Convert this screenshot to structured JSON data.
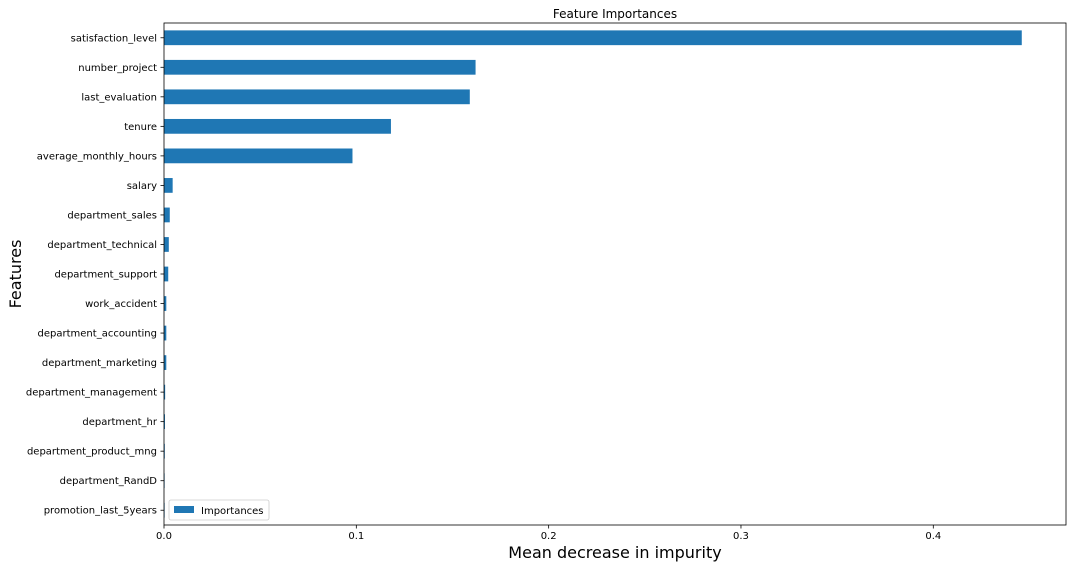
{
  "chart_data": {
    "type": "bar",
    "orientation": "horizontal",
    "title": "Feature Importances",
    "xlabel": "Mean decrease in impurity",
    "ylabel": "Features",
    "xlim": [
      0,
      0.469
    ],
    "xticks": [
      0.0,
      0.1,
      0.2,
      0.3,
      0.4
    ],
    "xtick_labels": [
      "0.0",
      "0.1",
      "0.2",
      "0.3",
      "0.4"
    ],
    "categories": [
      "satisfaction_level",
      "number_project",
      "last_evaluation",
      "tenure",
      "average_monthly_hours",
      "salary",
      "department_sales",
      "department_technical",
      "department_support",
      "work_accident",
      "department_accounting",
      "department_marketing",
      "department_management",
      "department_hr",
      "department_product_mng",
      "department_RandD",
      "promotion_last_5years"
    ],
    "series": [
      {
        "name": "Importances",
        "color": "#1f77b4",
        "values": [
          0.446,
          0.162,
          0.159,
          0.118,
          0.098,
          0.0045,
          0.003,
          0.0025,
          0.0022,
          0.0012,
          0.0012,
          0.0012,
          0.0006,
          0.0005,
          0.0004,
          0.0003,
          0.0002
        ]
      }
    ],
    "legend": {
      "position": "lower-left"
    },
    "grid": false
  }
}
